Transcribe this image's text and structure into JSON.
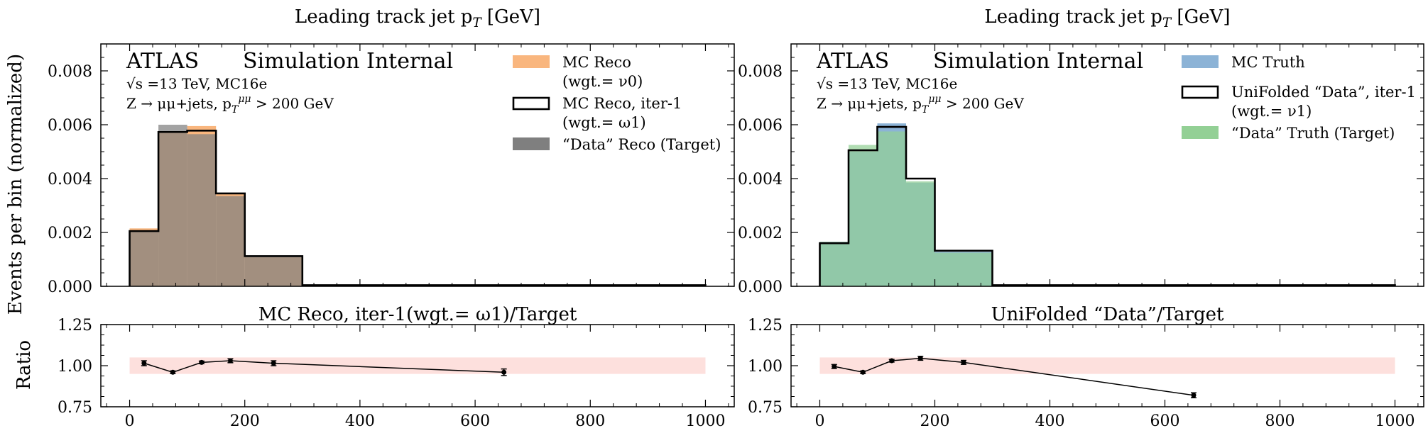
{
  "figure": {
    "ylabel_main": "Events per bin (normalized)",
    "ylabel_ratio": "Ratio"
  },
  "chart_data": [
    {
      "type": "bar",
      "panel": "main-left",
      "title": "Leading track jet p_T [GeV]",
      "annotations": {
        "experiment": "ATLAS",
        "status": "Simulation Internal",
        "energy": "√s =13 TeV, MC16e",
        "process": "Z → μμ+jets, p_T^μμ > 200 GeV"
      },
      "bin_edges": [
        0,
        50,
        100,
        150,
        200,
        300,
        1000
      ],
      "xlim": [
        -50,
        1050
      ],
      "ylim": [
        0,
        0.009
      ],
      "yticks": [
        0.0,
        0.002,
        0.004,
        0.006,
        0.008
      ],
      "ytick_labels": [
        "0.000",
        "0.002",
        "0.004",
        "0.006",
        "0.008"
      ],
      "legend_position": "top-right",
      "series": [
        {
          "name": "MC Reco",
          "name_line2": "(wgt.= ν0)",
          "style": "filled",
          "color": "#f9b67e",
          "values": [
            0.00215,
            0.00575,
            0.00595,
            0.00345,
            0.00108,
            4e-05
          ]
        },
        {
          "name": "MC Reco, iter-1",
          "name_line2": "(wgt.= ω1)",
          "style": "step",
          "color": "#000000",
          "values": [
            0.00205,
            0.00573,
            0.00578,
            0.00345,
            0.00112,
            4e-05
          ]
        },
        {
          "name": "“Data” Reco (Target)",
          "style": "filled",
          "color": "#7f7f7f",
          "values": [
            0.00205,
            0.006,
            0.00565,
            0.00335,
            0.0011,
            4e-05
          ]
        }
      ]
    },
    {
      "type": "bar",
      "panel": "main-right",
      "title": "Leading track jet p_T [GeV]",
      "annotations": {
        "experiment": "ATLAS",
        "status": "Simulation Internal",
        "energy": "√s =13 TeV, MC16e",
        "process": "Z → μμ+jets, p_T^μμ > 200 GeV"
      },
      "bin_edges": [
        0,
        50,
        100,
        150,
        200,
        300,
        1000
      ],
      "xlim": [
        -50,
        1050
      ],
      "ylim": [
        0,
        0.009
      ],
      "yticks": [
        0.0,
        0.002,
        0.004,
        0.006,
        0.008
      ],
      "ytick_labels": [
        "0.000",
        "0.002",
        "0.004",
        "0.006",
        "0.008"
      ],
      "legend_position": "top-right",
      "series": [
        {
          "name": "MC Truth",
          "style": "filled",
          "color": "#8cb3d6",
          "values": [
            0.00165,
            0.005,
            0.00605,
            0.00385,
            0.00128,
            4e-05
          ]
        },
        {
          "name": "UniFolded “Data”, iter-1",
          "name_line2": "(wgt.= ν1)",
          "style": "step",
          "color": "#000000",
          "values": [
            0.0016,
            0.00505,
            0.00592,
            0.004,
            0.00132,
            4e-05
          ]
        },
        {
          "name": "“Data” Truth (Target)",
          "style": "filled",
          "color": "#93d095",
          "values": [
            0.00165,
            0.00525,
            0.00575,
            0.0039,
            0.00125,
            4e-05
          ]
        }
      ]
    },
    {
      "type": "line",
      "panel": "ratio-left",
      "title": "MC Reco, iter-1(wgt.= ω1)/Target",
      "x": [
        25,
        75,
        125,
        175,
        250,
        650
      ],
      "y": [
        1.015,
        0.96,
        1.02,
        1.03,
        1.015,
        0.96
      ],
      "yerr": [
        0.015,
        0.008,
        0.008,
        0.012,
        0.015,
        0.02
      ],
      "band": [
        0.95,
        1.05
      ],
      "band_color": "#fde0dd",
      "band_xrange": [
        0,
        1000
      ],
      "xlim": [
        -50,
        1050
      ],
      "ylim": [
        0.75,
        1.25
      ],
      "xticks": [
        0,
        200,
        400,
        600,
        800,
        1000
      ],
      "xtick_labels": [
        "0",
        "200",
        "400",
        "600",
        "800",
        "1000"
      ],
      "yticks": [
        0.75,
        1.0,
        1.25
      ],
      "ytick_labels": [
        "0.75",
        "1.00",
        "1.25"
      ]
    },
    {
      "type": "line",
      "panel": "ratio-right",
      "title": "UniFolded “Data”/Target",
      "x": [
        25,
        75,
        125,
        175,
        250,
        650
      ],
      "y": [
        0.995,
        0.96,
        1.03,
        1.045,
        1.02,
        0.82
      ],
      "yerr": [
        0.012,
        0.008,
        0.008,
        0.012,
        0.012,
        0.015
      ],
      "band": [
        0.95,
        1.05
      ],
      "band_color": "#fde0dd",
      "band_xrange": [
        0,
        1000
      ],
      "xlim": [
        -50,
        1050
      ],
      "ylim": [
        0.75,
        1.25
      ],
      "xticks": [
        0,
        200,
        400,
        600,
        800,
        1000
      ],
      "xtick_labels": [
        "0",
        "200",
        "400",
        "600",
        "800",
        "1000"
      ],
      "yticks": [
        0.75,
        1.0,
        1.25
      ],
      "ytick_labels": [
        "0.75",
        "1.00",
        "1.25"
      ]
    }
  ]
}
